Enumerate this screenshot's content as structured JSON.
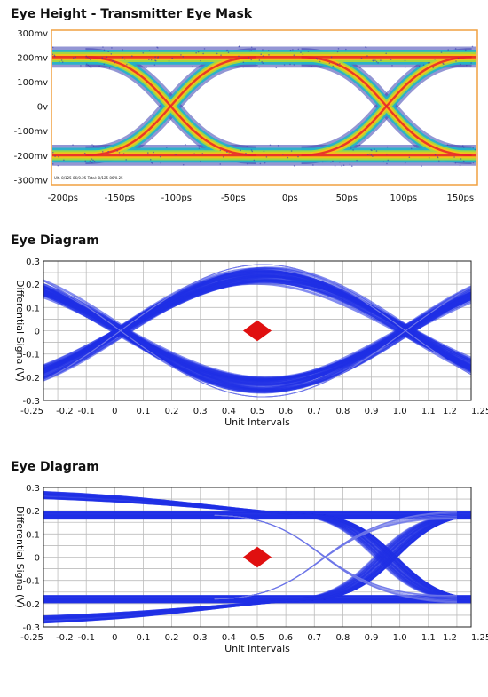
{
  "chart_data": [
    {
      "type": "heatmap",
      "title": "Eye Height - Transmitter Eye Mask",
      "x_ticks": [
        "-200ps",
        "-150ps",
        "-100ps",
        "-50ps",
        "0ps",
        "50ps",
        "100ps",
        "150ps"
      ],
      "y_ticks": [
        "300mv",
        "200mv",
        "100mv",
        "0v",
        "-100mv",
        "-200mv",
        "-300mv"
      ],
      "x_range_ps": [
        -210,
        165
      ],
      "y_range_mv": [
        -320,
        310
      ],
      "crossings_ps": [
        -105,
        85
      ],
      "levels_mv": [
        200,
        -200
      ],
      "grid": false,
      "overlay_text": [
        "Ult. 8/125 86/0.25  Total: 8/125 86/0.25"
      ],
      "colors": {
        "frame": "#f0a040",
        "hot": "#e8202a",
        "warm": "#f3c21a",
        "mid": "#a6d93b",
        "cool": "#22b4c8",
        "cold": "#3a3fb0"
      }
    },
    {
      "type": "line",
      "title": "Eye Diagram",
      "xlabel": "Unit Intervals",
      "ylabel": "Differential Signa (V)",
      "xlim": [
        -0.25,
        1.25
      ],
      "ylim": [
        -0.3,
        0.3
      ],
      "x_ticks": [
        "-0.25",
        "-0.2",
        "-0.1",
        "0",
        "0.1",
        "0.2",
        "0.3",
        "0.4",
        "0.5",
        "0.6",
        "0.7",
        "0.8",
        "0.9",
        "1.0",
        "1.1",
        "1.2",
        "1.25"
      ],
      "y_ticks": [
        "0.3",
        "0.2",
        "0.1",
        "0",
        "-0.1",
        "-0.2",
        "-0.3"
      ],
      "grid": true,
      "crossings_ui": [
        0.02,
        1.02
      ],
      "levels_v": [
        0.235,
        -0.235
      ],
      "mask_diamond": {
        "center": [
          0.5,
          0.0
        ],
        "half_width_ui": 0.05,
        "half_height_v": 0.045
      },
      "colors": {
        "trace": "#1f2fe6",
        "mask": "#e01010"
      }
    },
    {
      "type": "line",
      "title": "Eye Diagram",
      "xlabel": "Unit Intervals",
      "ylabel": "Differential Signa (V)",
      "xlim": [
        -0.25,
        1.25
      ],
      "ylim": [
        -0.3,
        0.3
      ],
      "x_ticks": [
        "-0.25",
        "-0.2",
        "-0.1",
        "0",
        "0.1",
        "0.2",
        "0.3",
        "0.4",
        "0.5",
        "0.6",
        "0.7",
        "0.8",
        "0.9",
        "1.0",
        "1.1",
        "1.2",
        "1.25"
      ],
      "y_ticks": [
        "0.3",
        "0.2",
        "0.1",
        "0",
        "-0.1",
        "-0.2",
        "-0.3"
      ],
      "grid": true,
      "crossing_ui": 0.95,
      "levels_v": [
        0.18,
        -0.18
      ],
      "outer_levels_v": [
        0.27,
        -0.27
      ],
      "mask_diamond": {
        "center": [
          0.5,
          0.0
        ],
        "half_width_ui": 0.05,
        "half_height_v": 0.045
      },
      "colors": {
        "trace": "#1f2fe6",
        "mask": "#e01010"
      }
    }
  ]
}
